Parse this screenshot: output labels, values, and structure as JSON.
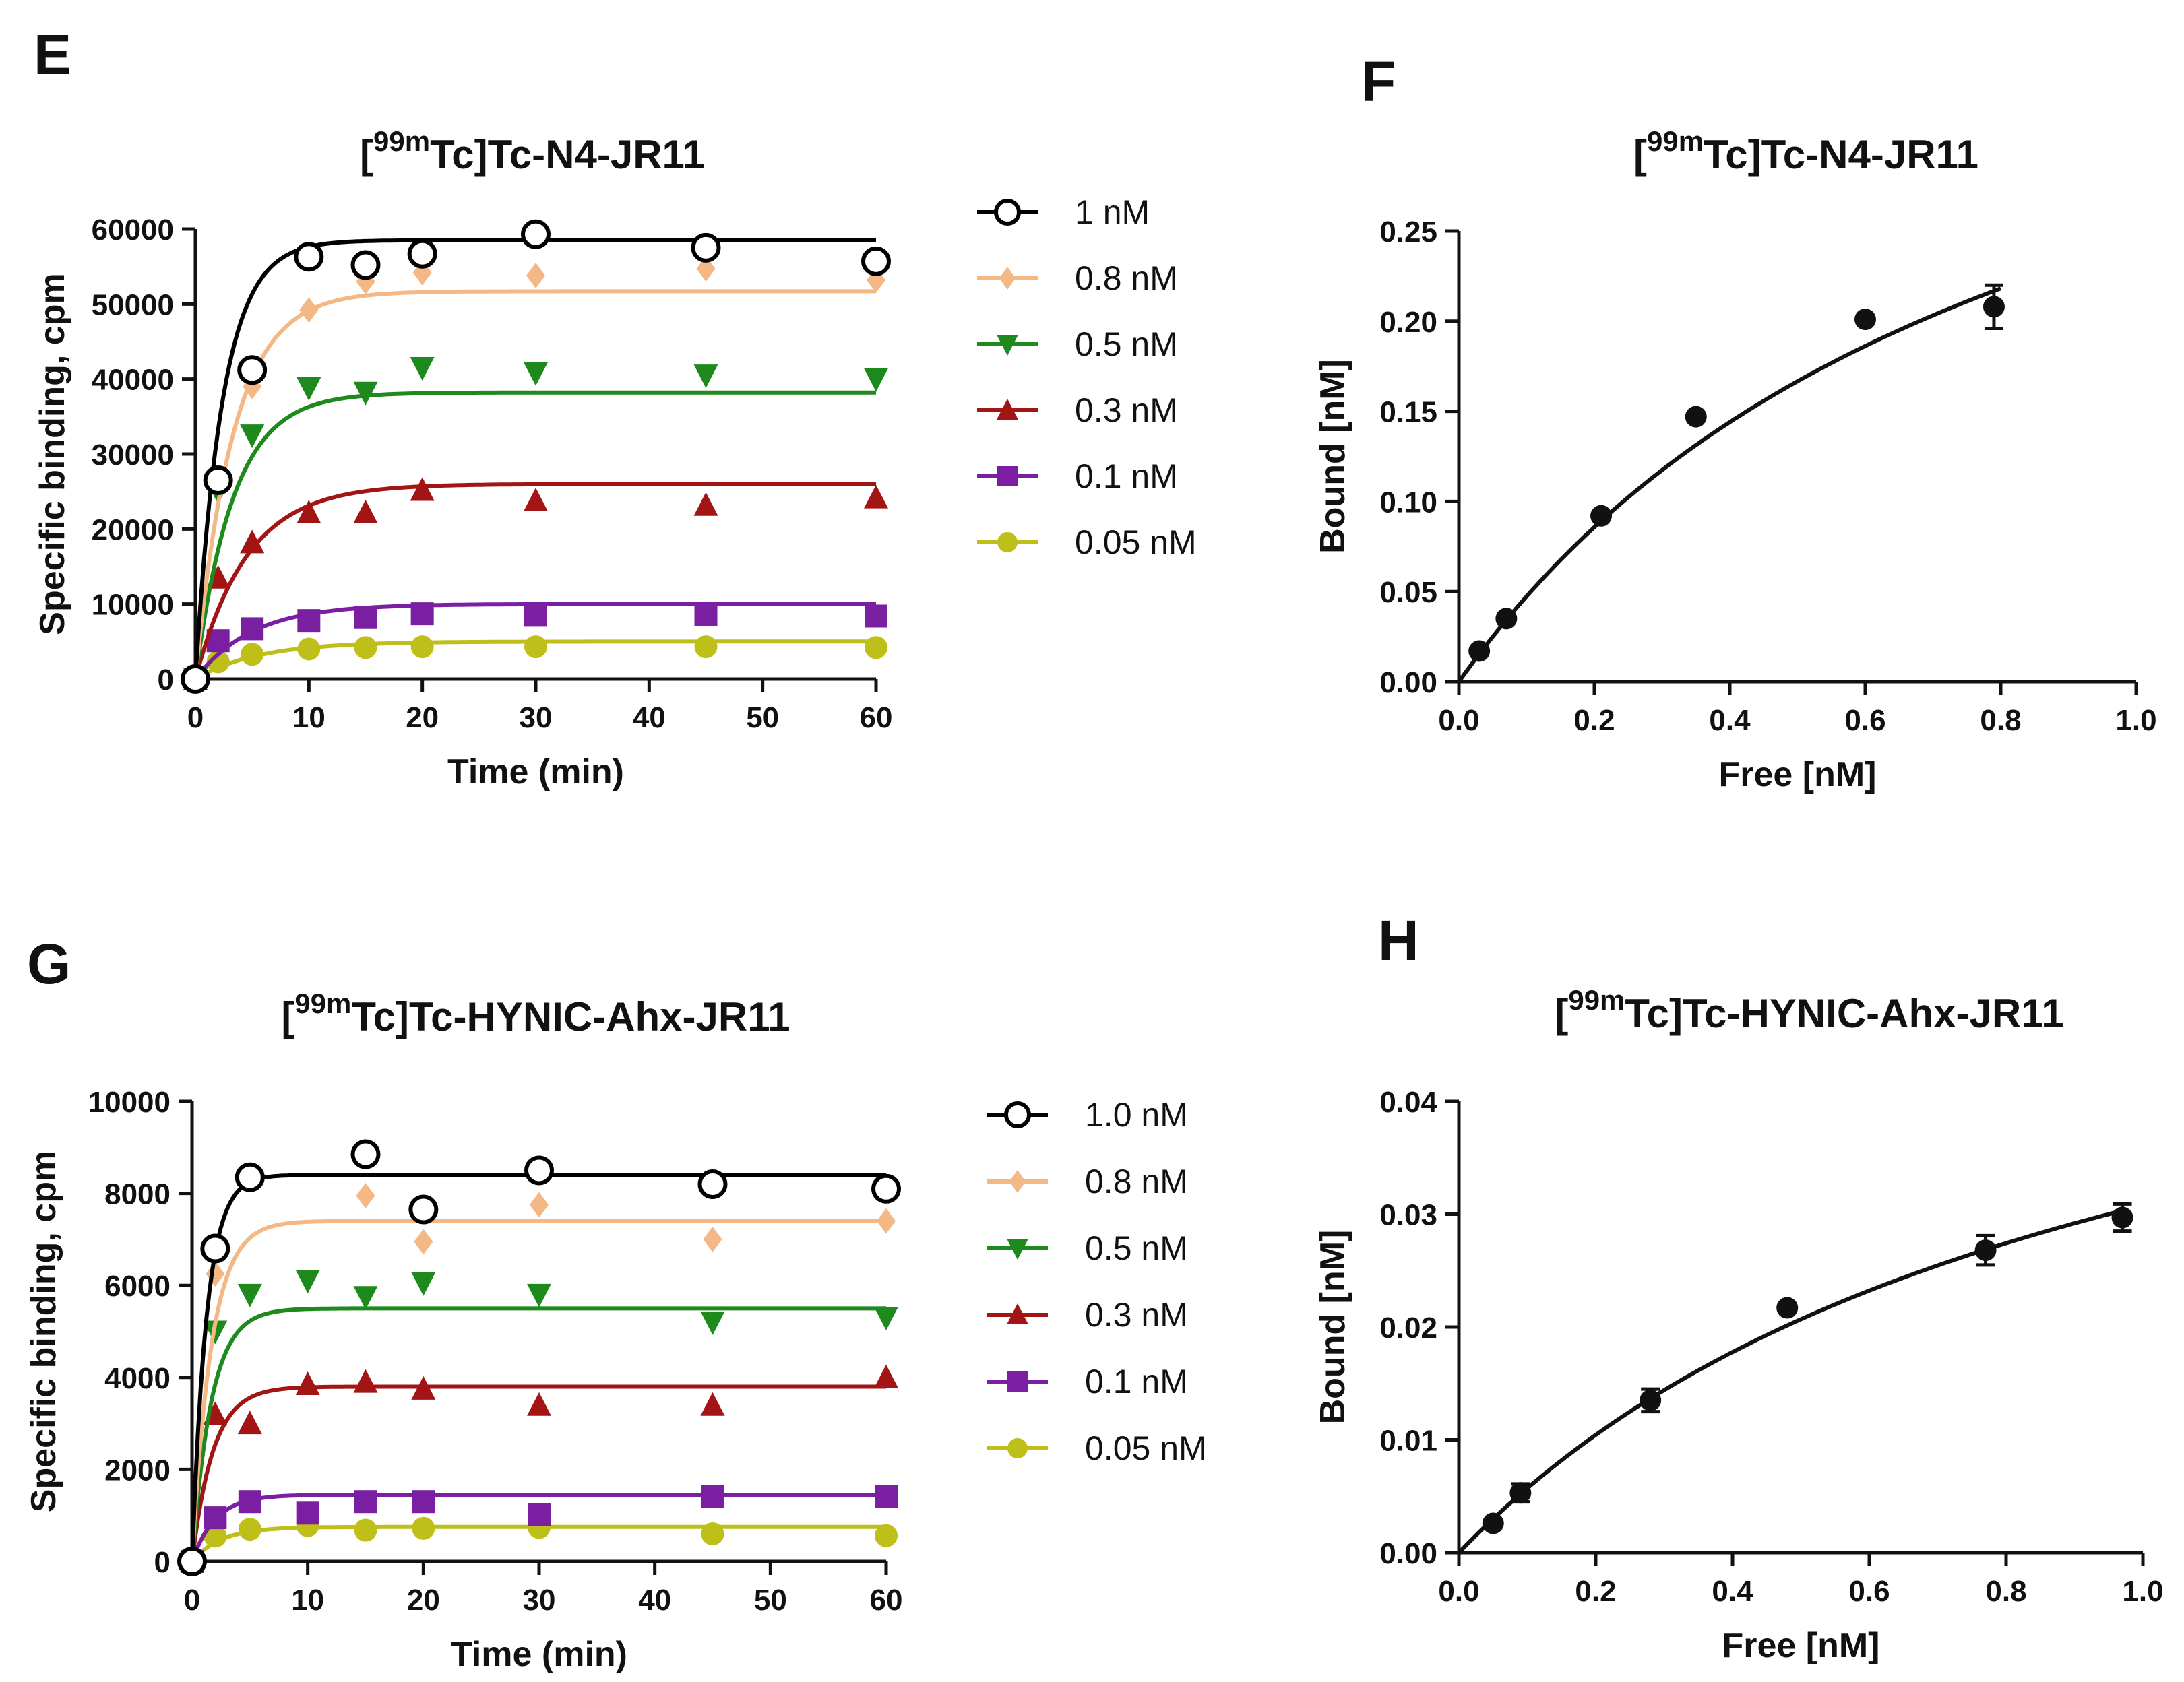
{
  "chart_data": [
    {
      "panel": "E",
      "type": "scatter",
      "title_sup": "99m",
      "title_pre": "[",
      "title_post": "Tc]Tc-N4-JR11",
      "xlabel": "Time (min)",
      "ylabel": "Specific binding, cpm",
      "xlim": [
        0,
        60
      ],
      "ylim": [
        0,
        60000
      ],
      "xticks": [
        0,
        10,
        20,
        30,
        40,
        50,
        60
      ],
      "yticks": [
        0,
        10000,
        20000,
        30000,
        40000,
        50000,
        60000
      ],
      "legend_position": "right",
      "series": [
        {
          "name": "1 nM",
          "color": "#000000",
          "marker": "open-circle",
          "fit_plateau": 58500,
          "fit_k": 0.42,
          "x": [
            0,
            2,
            5,
            10,
            15,
            20,
            30,
            45,
            60
          ],
          "y": [
            0,
            26500,
            41200,
            56300,
            55200,
            56700,
            59300,
            57500,
            55700
          ]
        },
        {
          "name": "0.8 nM",
          "color": "#F4B887",
          "marker": "diamond",
          "fit_plateau": 51700,
          "fit_k": 0.3,
          "x": [
            0,
            2,
            5,
            10,
            15,
            20,
            30,
            45,
            60
          ],
          "y": [
            0,
            26800,
            39000,
            49200,
            53000,
            54200,
            53800,
            54700,
            53200
          ]
        },
        {
          "name": "0.5 nM",
          "color": "#1E8A1E",
          "marker": "triangle-down",
          "fit_plateau": 38200,
          "fit_k": 0.3,
          "x": [
            0,
            2,
            5,
            10,
            15,
            20,
            30,
            45,
            60
          ],
          "y": [
            0,
            25000,
            32500,
            38800,
            38200,
            41500,
            40800,
            40500,
            40000
          ]
        },
        {
          "name": "0.3 nM",
          "color": "#A31515",
          "marker": "triangle-up",
          "fit_plateau": 26000,
          "fit_k": 0.22,
          "x": [
            0,
            2,
            5,
            10,
            15,
            20,
            30,
            45,
            60
          ],
          "y": [
            0,
            13500,
            18200,
            22200,
            22200,
            25200,
            23800,
            23200,
            24200
          ]
        },
        {
          "name": "0.1 nM",
          "color": "#7B1FA2",
          "marker": "square",
          "fit_plateau": 10000,
          "fit_k": 0.2,
          "x": [
            0,
            2,
            5,
            10,
            15,
            20,
            30,
            45,
            60
          ],
          "y": [
            0,
            5100,
            6700,
            7800,
            8200,
            8700,
            8500,
            8600,
            8400
          ]
        },
        {
          "name": "0.05 nM",
          "color": "#BFBF1A",
          "marker": "circle",
          "fit_plateau": 5000,
          "fit_k": 0.18,
          "x": [
            0,
            2,
            5,
            10,
            15,
            20,
            30,
            45,
            60
          ],
          "y": [
            0,
            2300,
            3300,
            4000,
            4200,
            4300,
            4300,
            4300,
            4200
          ]
        }
      ]
    },
    {
      "panel": "F",
      "type": "scatter",
      "title_sup": "99m",
      "title_pre": "[",
      "title_post": "Tc]Tc-N4-JR11",
      "xlabel": "Free [nM]",
      "ylabel": "Bound [nM]",
      "xlim": [
        0,
        1.0
      ],
      "ylim": [
        0,
        0.25
      ],
      "xticks": [
        "0.0",
        "0.2",
        "0.4",
        "0.6",
        "0.8",
        "1.0"
      ],
      "yticks": [
        "0.00",
        "0.05",
        "0.10",
        "0.15",
        "0.20",
        "0.25"
      ],
      "fit": {
        "bmax": 0.45,
        "kd": 0.85,
        "x_end": 0.8
      },
      "points": [
        {
          "x": 0.03,
          "y": 0.017,
          "err": 0
        },
        {
          "x": 0.07,
          "y": 0.035,
          "err": 0
        },
        {
          "x": 0.21,
          "y": 0.092,
          "err": 0
        },
        {
          "x": 0.35,
          "y": 0.147,
          "err": 0
        },
        {
          "x": 0.6,
          "y": 0.201,
          "err": 0
        },
        {
          "x": 0.79,
          "y": 0.208,
          "err": 0.012
        }
      ]
    },
    {
      "panel": "G",
      "type": "scatter",
      "title_sup": "99m",
      "title_pre": "[",
      "title_post": "Tc]Tc-HYNIC-Ahx-JR11",
      "xlabel": "Time (min)",
      "ylabel": "Specific binding, cpm",
      "xlim": [
        0,
        60
      ],
      "ylim": [
        0,
        10000
      ],
      "xticks": [
        0,
        10,
        20,
        30,
        40,
        50,
        60
      ],
      "yticks": [
        0,
        2000,
        4000,
        6000,
        8000,
        10000
      ],
      "legend_position": "right",
      "series": [
        {
          "name": "1.0 nM",
          "color": "#000000",
          "marker": "open-circle",
          "fit_plateau": 8400,
          "fit_k": 0.8,
          "x": [
            0,
            2,
            5,
            15,
            20,
            30,
            45,
            60
          ],
          "y": [
            0,
            6800,
            8350,
            8850,
            7650,
            8500,
            8200,
            8100
          ]
        },
        {
          "name": "0.8 nM",
          "color": "#F4B887",
          "marker": "diamond",
          "fit_plateau": 7400,
          "fit_k": 0.6,
          "x": [
            0,
            2,
            5,
            15,
            20,
            30,
            45,
            60
          ],
          "y": [
            0,
            6250,
            8380,
            7950,
            6950,
            7750,
            7000,
            7400
          ]
        },
        {
          "name": "0.5 nM",
          "color": "#1E8A1E",
          "marker": "triangle-down",
          "fit_plateau": 5500,
          "fit_k": 0.6,
          "x": [
            0,
            2,
            5,
            10,
            15,
            20,
            30,
            45,
            60
          ],
          "y": [
            0,
            5000,
            5800,
            6100,
            5750,
            6050,
            5800,
            5200,
            5300
          ]
        },
        {
          "name": "0.3 nM",
          "color": "#A31515",
          "marker": "triangle-up",
          "fit_plateau": 3800,
          "fit_k": 0.55,
          "x": [
            0,
            2,
            5,
            10,
            15,
            20,
            30,
            45,
            60
          ],
          "y": [
            0,
            3200,
            3000,
            3850,
            3900,
            3750,
            3400,
            3400,
            4000
          ]
        },
        {
          "name": "0.1 nM",
          "color": "#7B1FA2",
          "marker": "square",
          "fit_plateau": 1450,
          "fit_k": 0.5,
          "x": [
            0,
            2,
            5,
            10,
            15,
            20,
            30,
            45,
            60
          ],
          "y": [
            0,
            950,
            1300,
            1050,
            1300,
            1300,
            1020,
            1420,
            1420
          ]
        },
        {
          "name": "0.05 nM",
          "color": "#BFBF1A",
          "marker": "circle",
          "fit_plateau": 750,
          "fit_k": 0.4,
          "x": [
            0,
            2,
            5,
            10,
            15,
            20,
            30,
            45,
            60
          ],
          "y": [
            0,
            550,
            700,
            780,
            680,
            720,
            740,
            600,
            560
          ]
        }
      ]
    },
    {
      "panel": "H",
      "type": "scatter",
      "title_sup": "99m",
      "title_pre": "[",
      "title_post": "Tc]Tc-HYNIC-Ahx-JR11",
      "xlabel": "Free [nM]",
      "ylabel": "Bound [nM]",
      "xlim": [
        0,
        1.0
      ],
      "ylim": [
        0,
        0.04
      ],
      "xticks": [
        "0.0",
        "0.2",
        "0.4",
        "0.6",
        "0.8",
        "1.0"
      ],
      "yticks": [
        "0.00",
        "0.01",
        "0.02",
        "0.03",
        "0.04"
      ],
      "fit": {
        "bmax": 0.06,
        "kd": 0.95,
        "x_end": 0.97
      },
      "points": [
        {
          "x": 0.05,
          "y": 0.0026,
          "err": 0
        },
        {
          "x": 0.09,
          "y": 0.0053,
          "err": 0.0008
        },
        {
          "x": 0.28,
          "y": 0.0135,
          "err": 0.001
        },
        {
          "x": 0.48,
          "y": 0.0217,
          "err": 0
        },
        {
          "x": 0.77,
          "y": 0.0268,
          "err": 0.0013
        },
        {
          "x": 0.97,
          "y": 0.0297,
          "err": 0.0012
        }
      ]
    }
  ]
}
